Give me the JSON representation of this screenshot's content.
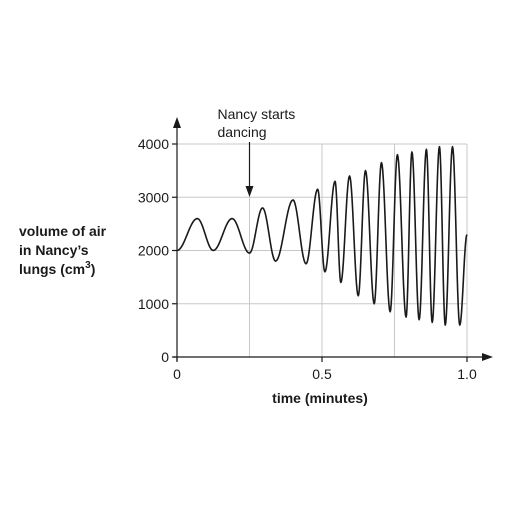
{
  "chart_data": {
    "type": "line",
    "title": "",
    "ylabel_lines": [
      "volume of air",
      "in Nancy’s",
      "lungs (cm",
      "3",
      ")"
    ],
    "xlabel": "time (minutes)",
    "xlim": [
      0,
      1.0
    ],
    "ylim": [
      0,
      4000
    ],
    "x_ticks": [
      0,
      0.5,
      1.0
    ],
    "x_tick_labels": [
      "0",
      "0.5",
      "1.0"
    ],
    "x_gridlines": [
      0.25,
      0.5,
      0.75,
      1.0
    ],
    "y_ticks": [
      0,
      1000,
      2000,
      3000,
      4000
    ],
    "y_tick_labels": [
      "0",
      "1000",
      "2000",
      "3000",
      "4000"
    ],
    "grid": true,
    "annotation": {
      "lines": [
        "Nancy starts",
        "dancing"
      ],
      "x": 0.25
    },
    "series": [
      {
        "x": [
          0,
          0.07,
          0.125,
          0.19,
          0.25,
          0.295,
          0.34,
          0.4,
          0.445,
          0.485,
          0.51,
          0.545,
          0.565,
          0.595,
          0.625,
          0.65,
          0.68,
          0.705,
          0.735,
          0.76,
          0.79,
          0.81,
          0.835,
          0.86,
          0.88,
          0.905,
          0.925,
          0.95,
          0.975,
          1.0
        ],
        "y": [
          2000,
          2600,
          2000,
          2600,
          1950,
          2800,
          1800,
          2950,
          1750,
          3150,
          1600,
          3300,
          1400,
          3400,
          1150,
          3500,
          1000,
          3650,
          850,
          3800,
          750,
          3850,
          700,
          3900,
          650,
          3950,
          600,
          3950,
          600,
          2300
        ],
        "color": "#1a1a1a"
      }
    ]
  }
}
